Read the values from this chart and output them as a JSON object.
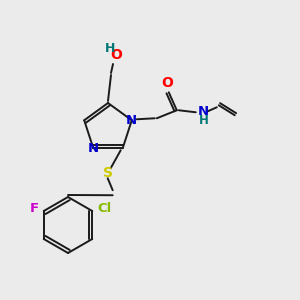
{
  "bg_color": "#ebebeb",
  "bond_color": "#1a1a1a",
  "atom_colors": {
    "O": "#ff0000",
    "N": "#0000cc",
    "S": "#cccc00",
    "F": "#cc00cc",
    "Cl": "#88bb00",
    "H": "#007777",
    "C": "#1a1a1a"
  },
  "font_size": 9.5,
  "figsize": [
    3.0,
    3.0
  ],
  "dpi": 100
}
